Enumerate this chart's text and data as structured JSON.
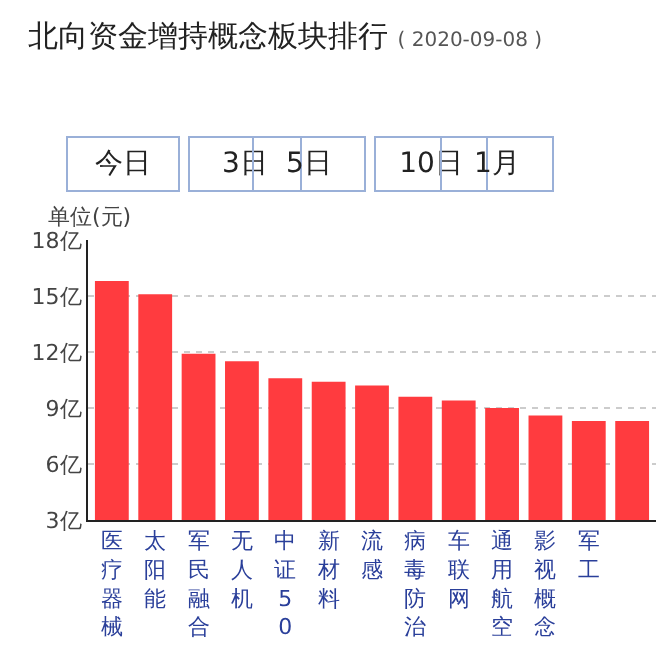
{
  "chart_data": {
    "type": "bar",
    "title": "北向资金增持概念板块排行",
    "subtitle": "( 2020-09-08 )",
    "ylabel": "单位(元)",
    "annotations": [
      "今日",
      "3日",
      "5日",
      "10日",
      "1月"
    ],
    "categories": [
      "医疗器械",
      "太阳能",
      "军民融合",
      "无人机",
      "中证50",
      "新材料",
      "流感",
      "病毒防治",
      "车联网",
      "通用航空",
      "影视概念",
      "军工",
      null
    ],
    "values": [
      15.8,
      15.1,
      11.9,
      11.5,
      10.6,
      10.4,
      10.2,
      9.6,
      9.4,
      9.0,
      8.6,
      8.3,
      8.3
    ],
    "color": "#ff3b3f",
    "ylim": [
      3,
      18
    ],
    "yticks": [
      {
        "value": 3,
        "label": "3亿"
      },
      {
        "value": 6,
        "label": "6亿"
      },
      {
        "value": 9,
        "label": "9亿"
      },
      {
        "value": 12,
        "label": "12亿"
      },
      {
        "value": 15,
        "label": "15亿"
      },
      {
        "value": 18,
        "label": "18亿"
      }
    ],
    "grid": "y",
    "legend": false
  }
}
